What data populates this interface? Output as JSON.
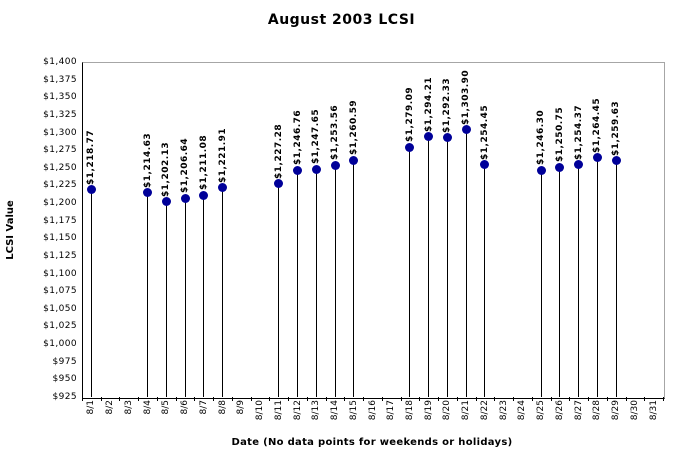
{
  "title": "August 2003 LCSI",
  "chart_data": {
    "type": "scatter",
    "style": "stem-lollipop",
    "title": "August 2003 LCSI",
    "xlabel": "Date (No data points for weekends or holidays)",
    "ylabel": "LCSI Value",
    "ylim": [
      925,
      1400
    ],
    "ytick_step": 25,
    "ytick_prefix": "$",
    "grid": false,
    "legend_position": "none",
    "marker_color": "#000099",
    "stem_color": "#000000",
    "categories": [
      "8/1",
      "8/2",
      "8/3",
      "8/4",
      "8/5",
      "8/6",
      "8/7",
      "8/8",
      "8/9",
      "8/10",
      "8/11",
      "8/12",
      "8/13",
      "8/14",
      "8/15",
      "8/16",
      "8/17",
      "8/18",
      "8/19",
      "8/20",
      "8/21",
      "8/22",
      "8/23",
      "8/24",
      "8/25",
      "8/26",
      "8/27",
      "8/28",
      "8/29",
      "8/30",
      "8/31"
    ],
    "points": [
      {
        "date": "8/1",
        "value": 1218.77,
        "label": "$1,218.77"
      },
      {
        "date": "8/4",
        "value": 1214.63,
        "label": "$1,214.63"
      },
      {
        "date": "8/5",
        "value": 1202.13,
        "label": "$1,202.13"
      },
      {
        "date": "8/6",
        "value": 1206.64,
        "label": "$1,206.64"
      },
      {
        "date": "8/7",
        "value": 1211.08,
        "label": "$1,211.08"
      },
      {
        "date": "8/8",
        "value": 1221.91,
        "label": "$1,221.91"
      },
      {
        "date": "8/11",
        "value": 1227.28,
        "label": "$1,227.28"
      },
      {
        "date": "8/12",
        "value": 1246.76,
        "label": "$1,246.76"
      },
      {
        "date": "8/13",
        "value": 1247.65,
        "label": "$1,247.65"
      },
      {
        "date": "8/14",
        "value": 1253.56,
        "label": "$1,253.56"
      },
      {
        "date": "8/15",
        "value": 1260.59,
        "label": "$1,260.59"
      },
      {
        "date": "8/18",
        "value": 1279.09,
        "label": "$1,279.09"
      },
      {
        "date": "8/19",
        "value": 1294.21,
        "label": "$1,294.21"
      },
      {
        "date": "8/20",
        "value": 1292.33,
        "label": "$1,292.33"
      },
      {
        "date": "8/21",
        "value": 1303.9,
        "label": "$1,303.90"
      },
      {
        "date": "8/22",
        "value": 1254.45,
        "label": "$1,254.45"
      },
      {
        "date": "8/25",
        "value": 1246.3,
        "label": "$1,246.30"
      },
      {
        "date": "8/26",
        "value": 1250.75,
        "label": "$1,250.75"
      },
      {
        "date": "8/27",
        "value": 1254.37,
        "label": "$1,254.37"
      },
      {
        "date": "8/28",
        "value": 1264.45,
        "label": "$1,264.45"
      },
      {
        "date": "8/29",
        "value": 1259.63,
        "label": "$1,259.63"
      }
    ]
  }
}
